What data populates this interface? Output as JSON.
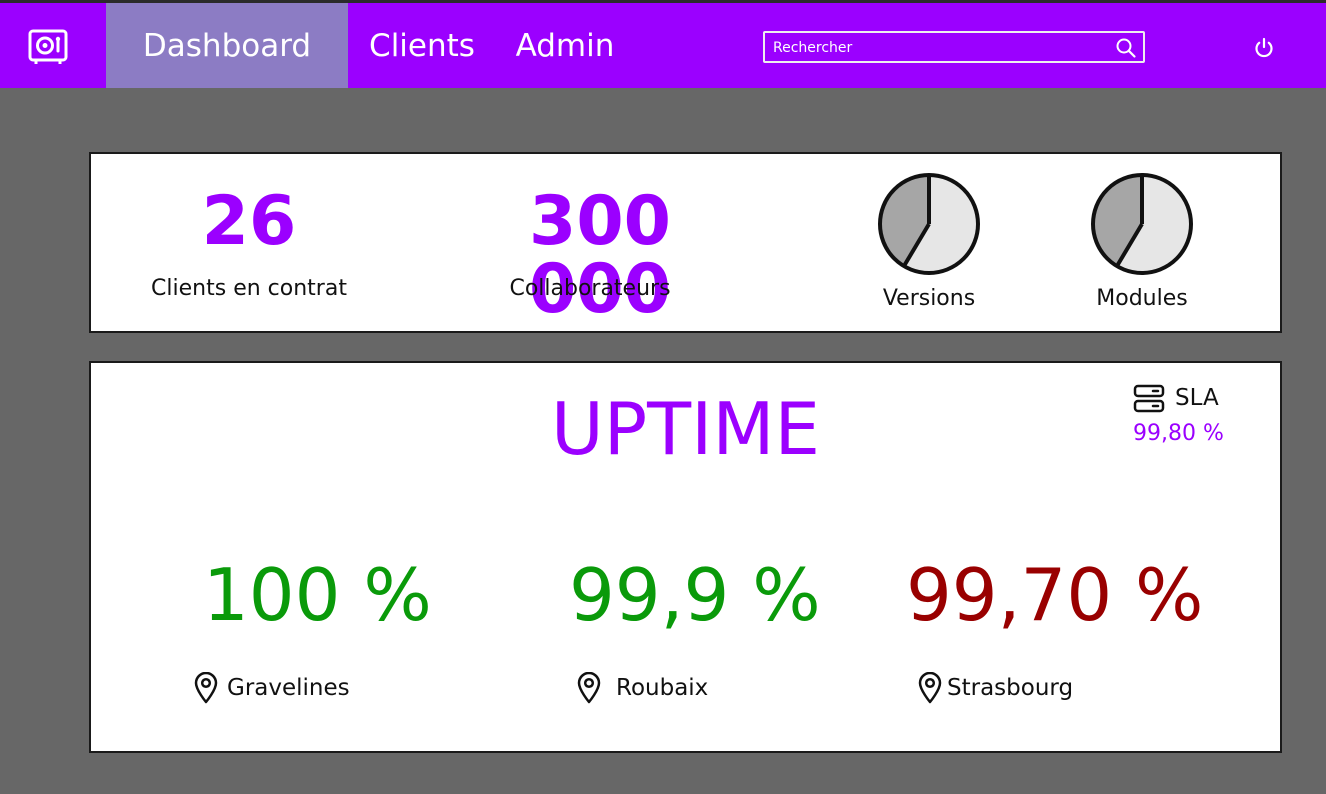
{
  "nav": {
    "items": [
      {
        "label": "Dashboard",
        "active": true
      },
      {
        "label": "Clients",
        "active": false
      },
      {
        "label": "Admin",
        "active": false
      }
    ],
    "search_placeholder": "Rechercher",
    "icons": {
      "logo": "safe-icon",
      "search": "search-icon",
      "power": "power-icon"
    }
  },
  "stats": {
    "clients": {
      "value": "26",
      "label": "Clients en contrat"
    },
    "collaborators": {
      "value": "300 000",
      "label": "Collaborateurs"
    },
    "versions": {
      "label": "Versions"
    },
    "modules": {
      "label": "Modules"
    }
  },
  "uptime": {
    "title": "UPTIME",
    "sla": {
      "label": "SLA",
      "value": "99,80 %",
      "icon": "server-icon"
    },
    "sites": [
      {
        "value": "100 %",
        "name": "Gravelines",
        "color": "#0a9a0a"
      },
      {
        "value": "99,9 %",
        "name": "Roubaix",
        "color": "#0a9a0a"
      },
      {
        "value": "99,70 %",
        "name": "Strasbourg",
        "color": "#990000"
      }
    ]
  },
  "colors": {
    "accent": "#9b00ff",
    "nav_active": "#8c7cc4",
    "background": "#676767",
    "ok": "#0a9a0a",
    "warn": "#990000",
    "pie_dark": "#a6a6a6",
    "pie_light": "#e6e6e6"
  }
}
